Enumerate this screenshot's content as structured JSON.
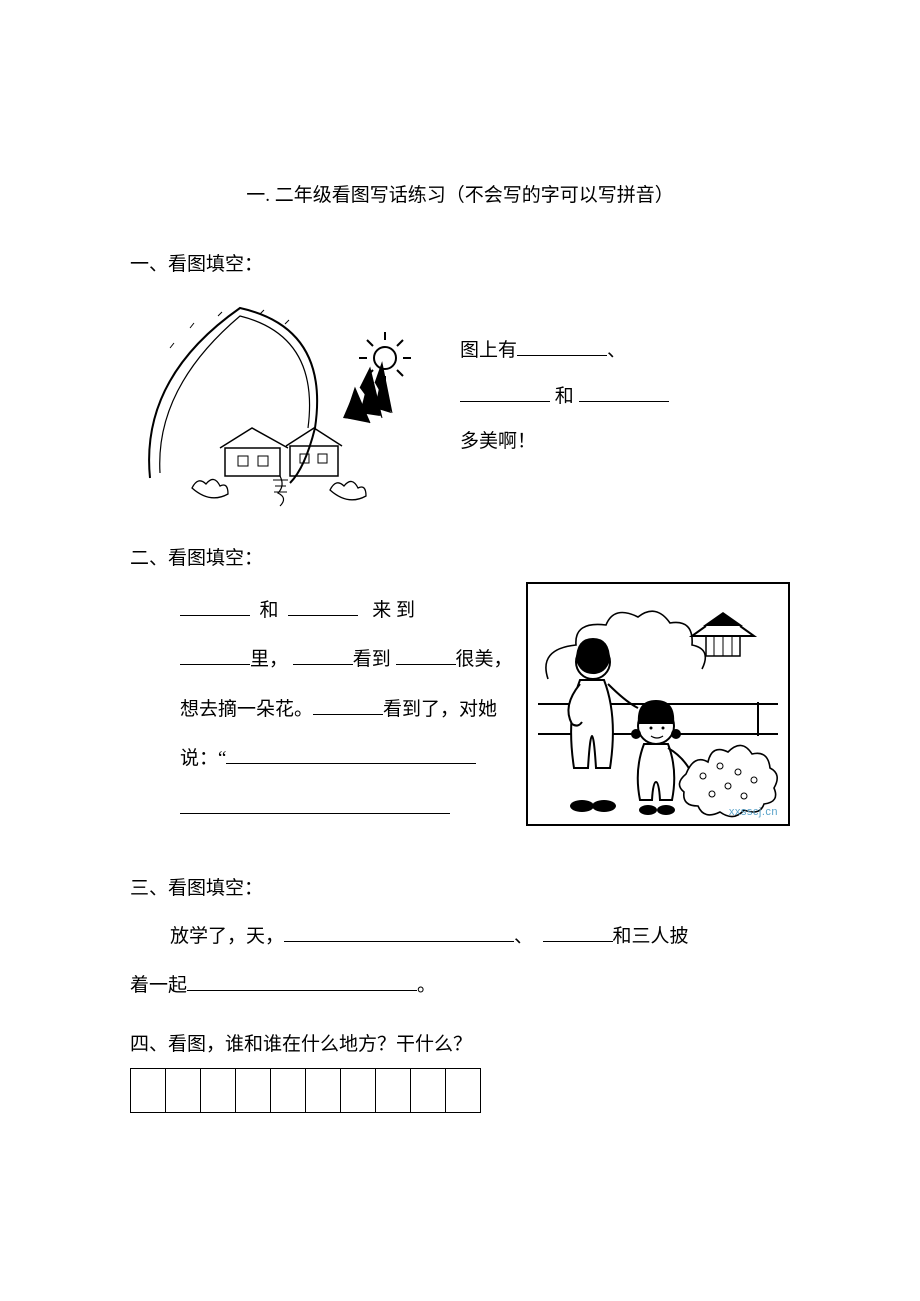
{
  "title": "一. 二年级看图写话练习（不会写的字可以写拼音）",
  "s1": {
    "head": "一、看图填空：",
    "t1": "图上有",
    "t2": "和",
    "t3": "多美啊！"
  },
  "s2": {
    "head": "二、看图填空：",
    "t1": "和",
    "t2": "来 到",
    "t3": "里，",
    "t4": "看到",
    "t5": "很美，",
    "t6": "想去摘一朵花。",
    "t7": "看到了，对她",
    "t8": "说：“",
    "watermark": "xxsscj.cn"
  },
  "s3": {
    "head": "三、看图填空：",
    "t1": "放学了，天，",
    "t2": "、",
    "t3": "和三人披",
    "t4": "着一起",
    "t5": "。"
  },
  "s4": {
    "head": "四、看图，谁和谁在什么地方？干什么？",
    "grid_cells": 10
  }
}
